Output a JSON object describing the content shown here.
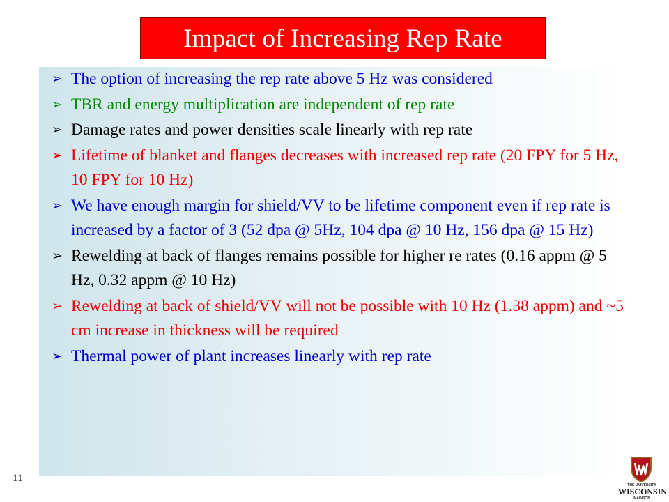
{
  "slide": {
    "title": "Impact of Increasing Rep Rate",
    "page_number": "11",
    "bullet_icon": "arrow-bullet-icon",
    "colors": {
      "title_background": "#ff0000",
      "blue": "#0000cc",
      "green": "#008a00",
      "black": "#000000",
      "red": "#ee0000"
    },
    "bullets": [
      {
        "text": "The option of increasing the rep rate above 5 Hz was considered",
        "color": "blue"
      },
      {
        "text": "TBR and energy multiplication are independent of rep rate",
        "color": "green"
      },
      {
        "text": "Damage rates and power densities scale linearly with rep rate",
        "color": "black"
      },
      {
        "text": "Lifetime of blanket and flanges decreases with increased rep rate (20 FPY for 5 Hz, 10 FPY for 10 Hz)",
        "color": "red"
      },
      {
        "text": "We have enough margin for shield/VV to be lifetime component even if rep rate is increased by a factor of 3 (52 dpa @ 5Hz, 104 dpa @ 10 Hz, 156 dpa @ 15 Hz)",
        "color": "blue"
      },
      {
        "text": "Rewelding at back of flanges remains possible for higher re rates (0.16 appm @ 5 Hz, 0.32 appm @ 10 Hz)",
        "color": "black"
      },
      {
        "text": "Rewelding at back of shield/VV will not be possible with 10 Hz (1.38 appm) and ~5 cm increase in thickness will be required",
        "color": "red"
      },
      {
        "text": "Thermal power of plant increases linearly with rep rate",
        "color": "blue"
      }
    ],
    "logo": {
      "icon": "university-crest-icon",
      "line1": "THE UNIVERSITY",
      "line2": "WISCONSIN",
      "line3": "MADISON"
    }
  }
}
